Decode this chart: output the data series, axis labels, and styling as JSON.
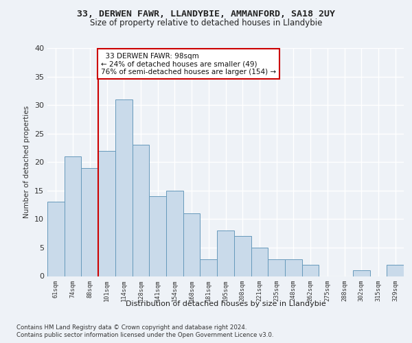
{
  "title1": "33, DERWEN FAWR, LLANDYBIE, AMMANFORD, SA18 2UY",
  "title2": "Size of property relative to detached houses in Llandybie",
  "xlabel": "Distribution of detached houses by size in Llandybie",
  "ylabel": "Number of detached properties",
  "categories": [
    "61sqm",
    "74sqm",
    "88sqm",
    "101sqm",
    "114sqm",
    "128sqm",
    "141sqm",
    "154sqm",
    "168sqm",
    "181sqm",
    "195sqm",
    "208sqm",
    "221sqm",
    "235sqm",
    "248sqm",
    "262sqm",
    "275sqm",
    "288sqm",
    "302sqm",
    "315sqm",
    "329sqm"
  ],
  "values": [
    13,
    21,
    19,
    22,
    31,
    23,
    14,
    15,
    11,
    3,
    8,
    7,
    5,
    3,
    3,
    2,
    0,
    0,
    1,
    0,
    2
  ],
  "bar_color": "#c9daea",
  "bar_edge_color": "#6699bb",
  "marker_label": "33 DERWEN FAWR: 98sqm",
  "annotation_line1": "← 24% of detached houses are smaller (49)",
  "annotation_line2": "76% of semi-detached houses are larger (154) →",
  "ylim": [
    0,
    40
  ],
  "yticks": [
    0,
    5,
    10,
    15,
    20,
    25,
    30,
    35,
    40
  ],
  "background_color": "#eef2f7",
  "plot_bg_color": "#eef2f7",
  "grid_color": "#ffffff",
  "footer1": "Contains HM Land Registry data © Crown copyright and database right 2024.",
  "footer2": "Contains public sector information licensed under the Open Government Licence v3.0.",
  "annotation_box_color": "#ffffff",
  "annotation_box_edge": "#cc0000",
  "vline_color": "#cc0000",
  "vline_x_index": 3
}
